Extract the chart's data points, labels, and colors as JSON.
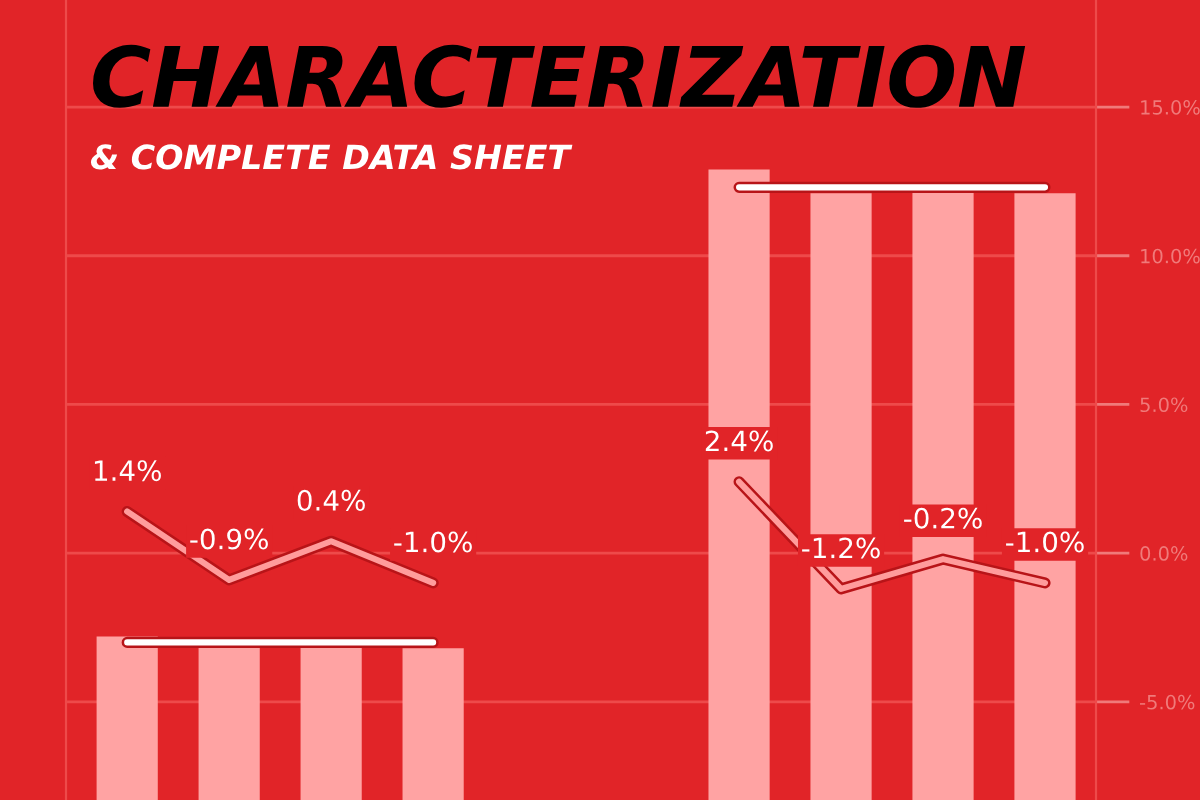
{
  "chart_data": {
    "type": "bar",
    "title": "CHARACTERIZATION",
    "subtitle": "& COMPLETE DATA SHEET",
    "categories": [
      null,
      null,
      null,
      null,
      null,
      null,
      null,
      null,
      null,
      null
    ],
    "series": [
      {
        "color": "#ffa3a3",
        "values": [
          5.5,
          5.2,
          5.2,
          5.1,
          null,
          null,
          21.2,
          20.4,
          20.6,
          20.4
        ],
        "base": [
          -8.3,
          -8.3,
          -8.3,
          -8.3,
          null,
          null,
          -8.3,
          -8.3,
          -8.3,
          -8.3
        ]
      },
      {
        "type": "line",
        "color": "#ffffff",
        "values": [
          -3.0,
          -3.0,
          -3.0,
          -3.0,
          null,
          null,
          12.3,
          12.3,
          12.3,
          12.3
        ]
      },
      {
        "type": "line",
        "color": "#ff9c9c",
        "values": [
          1.4,
          -0.9,
          0.4,
          -1.0,
          null,
          null,
          2.4,
          -1.2,
          -0.2,
          -1.0
        ],
        "value_labels": [
          "1.4%",
          "-0.9%",
          "0.4%",
          "-1.0%",
          null,
          null,
          "2.4%",
          "-1.2%",
          "-0.2%",
          "-1.0%"
        ]
      }
    ],
    "ylim": [
      -8.3,
      18.6
    ],
    "yticks": [
      {
        "value": -5,
        "label": "-5.0%"
      },
      {
        "value": 0,
        "label": "0.0%"
      },
      {
        "value": 5,
        "label": "5.0%"
      },
      {
        "value": 10,
        "label": "10.0%"
      },
      {
        "value": 15,
        "label": "15.0%"
      }
    ],
    "grid": "y",
    "tick_labels": "y"
  }
}
